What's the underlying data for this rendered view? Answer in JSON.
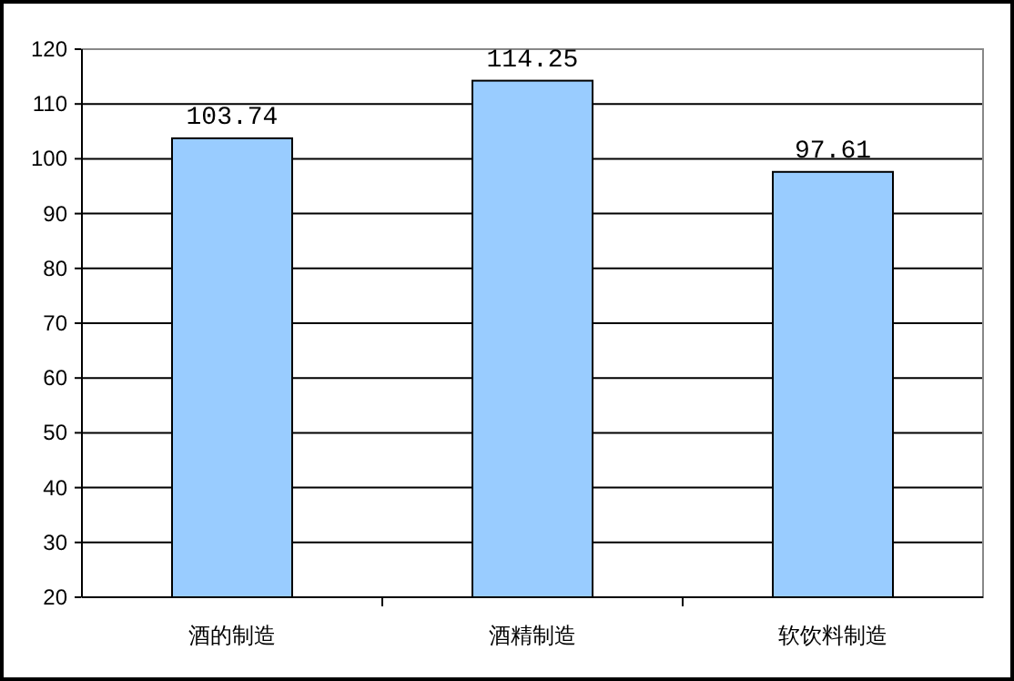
{
  "chart_data": {
    "type": "bar",
    "categories": [
      "酒的制造",
      "酒精制造",
      "软饮料制造"
    ],
    "values": [
      103.74,
      114.25,
      97.61
    ],
    "color": "#99ccff",
    "ylim": [
      20,
      120
    ],
    "yticks": [
      20,
      30,
      40,
      50,
      60,
      70,
      80,
      90,
      100,
      110,
      120
    ],
    "grid": "y",
    "data_labels": true
  }
}
